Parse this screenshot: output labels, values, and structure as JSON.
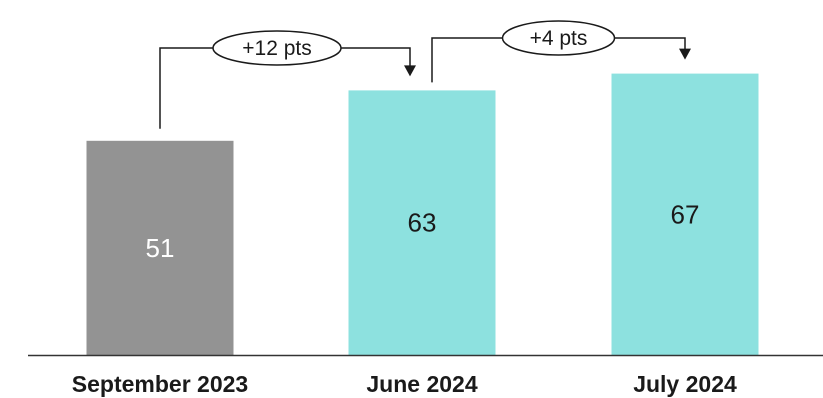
{
  "chart_data": {
    "type": "bar",
    "categories": [
      "September 2023",
      "June 2024",
      "July 2024"
    ],
    "values": [
      51,
      63,
      67
    ],
    "ylim": [
      0,
      100
    ],
    "grid": false,
    "bar_colors": [
      "#939393",
      "#8de1df",
      "#8de1df"
    ],
    "value_label_colors": [
      "#ffffff",
      "#1a1a1a",
      "#1a1a1a"
    ],
    "annotations": [
      {
        "from_index": 0,
        "to_index": 1,
        "label": "+12 pts"
      },
      {
        "from_index": 1,
        "to_index": 2,
        "label": "+4 pts"
      }
    ]
  }
}
